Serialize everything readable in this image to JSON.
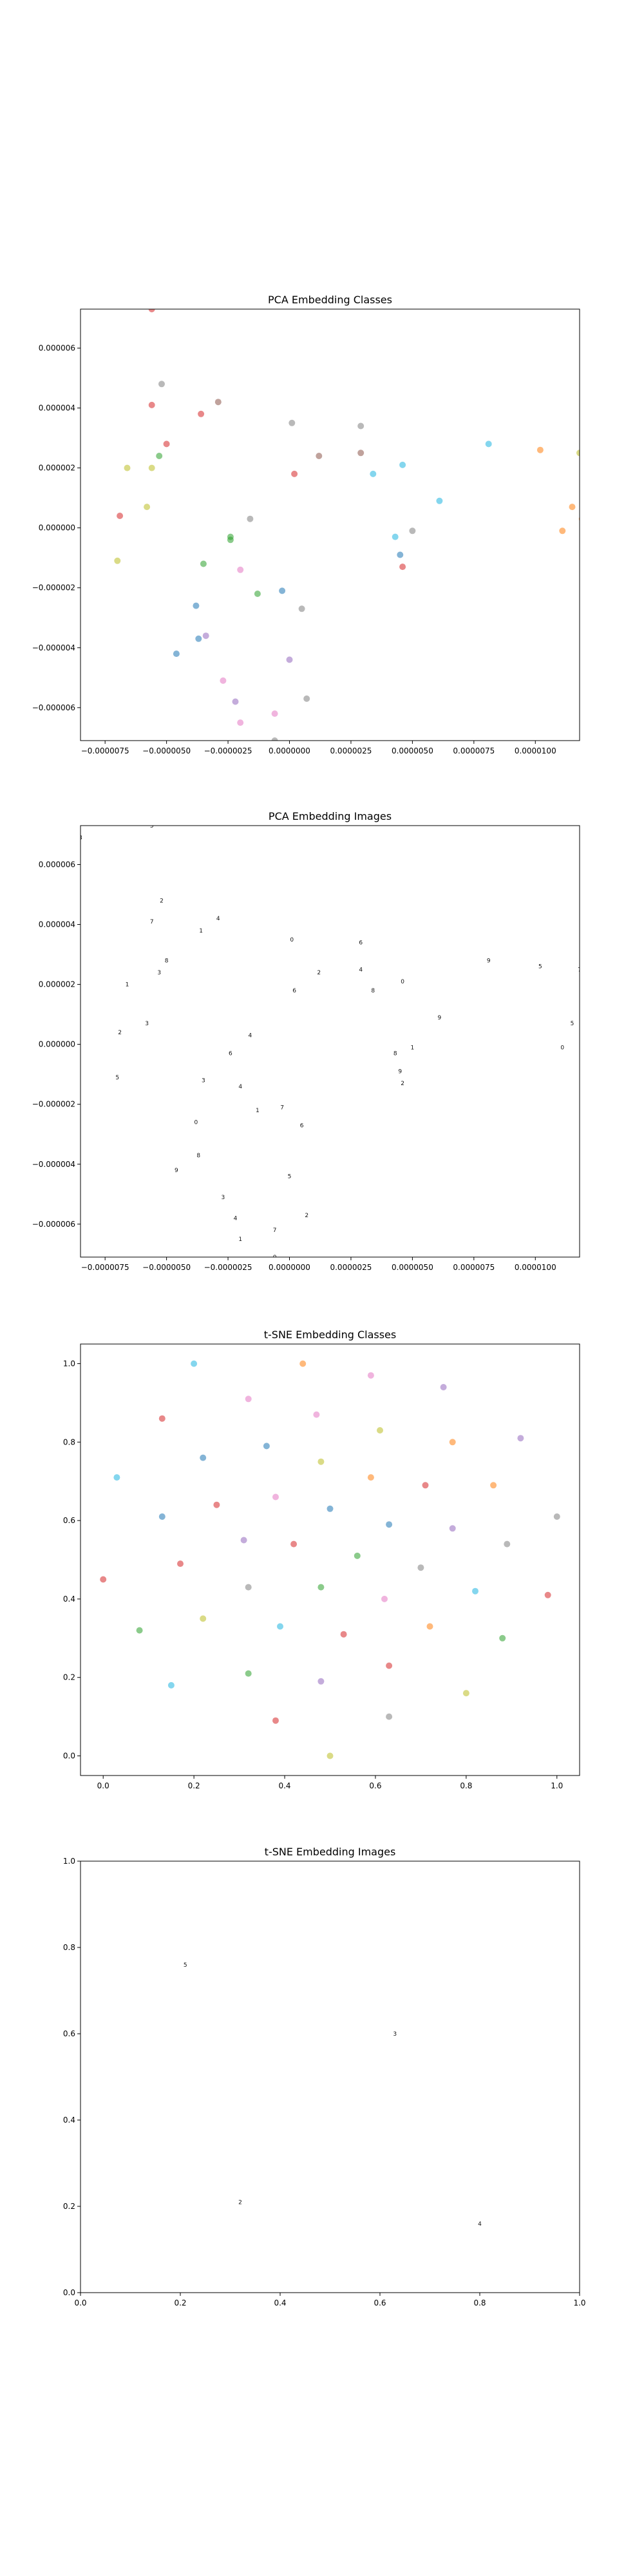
{
  "chart_data": [
    {
      "type": "scatter",
      "title": "PCA Embedding Classes",
      "xlim": [
        -8.5e-06,
        1.18e-05
      ],
      "ylim": [
        -7.1e-06,
        7.3e-06
      ],
      "x_ticks": [
        -7.5e-06,
        -5e-06,
        -2.5e-06,
        0.0,
        2.5e-06,
        5e-06,
        7.5e-06,
        1e-05
      ],
      "x_tick_labels": [
        "−0.0000075",
        "−0.0000050",
        "−0.0000025",
        "0.0000000",
        "0.0000025",
        "0.0000050",
        "0.0000075",
        "0.0000100"
      ],
      "y_ticks": [
        -6e-06,
        -4e-06,
        -2e-06,
        0.0,
        2e-06,
        4e-06,
        6e-06
      ],
      "y_tick_labels": [
        "−0.000006",
        "−0.000004",
        "−0.000002",
        "0.000000",
        "0.000002",
        "0.000004",
        "0.000006"
      ],
      "points": [
        {
          "x": -5.6e-06,
          "y": 7.3e-06,
          "color": "#d62728"
        },
        {
          "x": -5.2e-06,
          "y": 4.8e-06,
          "color": "#7f7f7f"
        },
        {
          "x": -2.9e-06,
          "y": 4.2e-06,
          "color": "#8c564b"
        },
        {
          "x": -5.6e-06,
          "y": 4.1e-06,
          "color": "#d62728"
        },
        {
          "x": -3.6e-06,
          "y": 3.8e-06,
          "color": "#d62728"
        },
        {
          "x": 1e-07,
          "y": 3.5e-06,
          "color": "#7f7f7f"
        },
        {
          "x": 2.9e-06,
          "y": 3.4e-06,
          "color": "#7f7f7f"
        },
        {
          "x": -5e-06,
          "y": 2.8e-06,
          "color": "#d62728"
        },
        {
          "x": 8.1e-06,
          "y": 2.8e-06,
          "color": "#1fb4e0"
        },
        {
          "x": 1.02e-05,
          "y": 2.6e-06,
          "color": "#ff7f0e"
        },
        {
          "x": -5.3e-06,
          "y": 2.4e-06,
          "color": "#2ca02c"
        },
        {
          "x": 1.2e-06,
          "y": 2.4e-06,
          "color": "#8c564b"
        },
        {
          "x": 2.9e-06,
          "y": 2.5e-06,
          "color": "#8c564b"
        },
        {
          "x": 1.18e-05,
          "y": 2.5e-06,
          "color": "#bcbd22"
        },
        {
          "x": -6.6e-06,
          "y": 2e-06,
          "color": "#bcbd22"
        },
        {
          "x": -5.6e-06,
          "y": 2e-06,
          "color": "#bcbd22"
        },
        {
          "x": 4.6e-06,
          "y": 2.1e-06,
          "color": "#1fb4e0"
        },
        {
          "x": 2e-07,
          "y": 1.8e-06,
          "color": "#d62728"
        },
        {
          "x": 3.4e-06,
          "y": 1.8e-06,
          "color": "#1fb4e0"
        },
        {
          "x": 6.1e-06,
          "y": 9e-07,
          "color": "#1fb4e0"
        },
        {
          "x": 1.15e-05,
          "y": 7e-07,
          "color": "#ff7f0e"
        },
        {
          "x": -5.8e-06,
          "y": 7e-07,
          "color": "#bcbd22"
        },
        {
          "x": -6.9e-06,
          "y": 4e-07,
          "color": "#d62728"
        },
        {
          "x": -1.6e-06,
          "y": 3e-07,
          "color": "#7f7f7f"
        },
        {
          "x": 1.19e-05,
          "y": 3e-07,
          "color": "#ff7f0e"
        },
        {
          "x": 5e-06,
          "y": -1e-07,
          "color": "#7f7f7f"
        },
        {
          "x": 1.11e-05,
          "y": -1e-07,
          "color": "#ff7f0e"
        },
        {
          "x": -2.4e-06,
          "y": -3e-07,
          "color": "#2ca02c"
        },
        {
          "x": -2.4e-06,
          "y": -4e-07,
          "color": "#2ca02c"
        },
        {
          "x": 4.3e-06,
          "y": -3e-07,
          "color": "#1fb4e0"
        },
        {
          "x": 4.5e-06,
          "y": -9e-07,
          "color": "#1f77b4"
        },
        {
          "x": -7e-06,
          "y": -1.1e-06,
          "color": "#bcbd22"
        },
        {
          "x": -3.5e-06,
          "y": -1.2e-06,
          "color": "#2ca02c"
        },
        {
          "x": 4.6e-06,
          "y": -1.3e-06,
          "color": "#d62728"
        },
        {
          "x": -2e-06,
          "y": -1.4e-06,
          "color": "#e377c2"
        },
        {
          "x": -3e-07,
          "y": -2.1e-06,
          "color": "#1f77b4"
        },
        {
          "x": -1.3e-06,
          "y": -2.2e-06,
          "color": "#2ca02c"
        },
        {
          "x": -3.8e-06,
          "y": -2.6e-06,
          "color": "#1f77b4"
        },
        {
          "x": 5e-07,
          "y": -2.7e-06,
          "color": "#7f7f7f"
        },
        {
          "x": -3.7e-06,
          "y": -3.7e-06,
          "color": "#1f77b4"
        },
        {
          "x": -3.4e-06,
          "y": -3.6e-06,
          "color": "#9467bd"
        },
        {
          "x": -4.6e-06,
          "y": -4.2e-06,
          "color": "#1f77b4"
        },
        {
          "x": 0.0,
          "y": -4.4e-06,
          "color": "#9467bd"
        },
        {
          "x": -2.7e-06,
          "y": -5.1e-06,
          "color": "#e377c2"
        },
        {
          "x": 7e-07,
          "y": -5.7e-06,
          "color": "#7f7f7f"
        },
        {
          "x": -2.2e-06,
          "y": -5.8e-06,
          "color": "#9467bd"
        },
        {
          "x": -6e-07,
          "y": -6.2e-06,
          "color": "#e377c2"
        },
        {
          "x": -2e-06,
          "y": -6.5e-06,
          "color": "#e377c2"
        },
        {
          "x": -6e-07,
          "y": -7.1e-06,
          "color": "#7f7f7f"
        }
      ]
    },
    {
      "type": "scatter",
      "title": "PCA Embedding Images",
      "xlim": [
        -8.5e-06,
        1.18e-05
      ],
      "ylim": [
        -7.1e-06,
        7.3e-06
      ],
      "x_ticks": [
        -7.5e-06,
        -5e-06,
        -2.5e-06,
        0.0,
        2.5e-06,
        5e-06,
        7.5e-06,
        1e-05
      ],
      "x_tick_labels": [
        "−0.0000075",
        "−0.0000050",
        "−0.0000025",
        "0.0000000",
        "0.0000025",
        "0.0000050",
        "0.0000075",
        "0.0000100"
      ],
      "y_ticks": [
        -6e-06,
        -4e-06,
        -2e-06,
        0.0,
        2e-06,
        4e-06,
        6e-06
      ],
      "y_tick_labels": [
        "−0.000006",
        "−0.000004",
        "−0.000002",
        "0.000000",
        "0.000002",
        "0.000004",
        "0.000006"
      ],
      "points": [
        {
          "x": -5.6e-06,
          "y": 7.3e-06
        },
        {
          "x": -8.5e-06,
          "y": 6.9e-06
        },
        {
          "x": -5.2e-06,
          "y": 4.8e-06
        },
        {
          "x": -2.9e-06,
          "y": 4.2e-06
        },
        {
          "x": -5.6e-06,
          "y": 4.1e-06
        },
        {
          "x": -3.6e-06,
          "y": 3.8e-06
        },
        {
          "x": 1e-07,
          "y": 3.5e-06
        },
        {
          "x": 2.9e-06,
          "y": 3.4e-06
        },
        {
          "x": -5e-06,
          "y": 2.8e-06
        },
        {
          "x": 8.1e-06,
          "y": 2.8e-06
        },
        {
          "x": 1.02e-05,
          "y": 2.6e-06
        },
        {
          "x": -5.3e-06,
          "y": 2.4e-06
        },
        {
          "x": 1.2e-06,
          "y": 2.4e-06
        },
        {
          "x": 2.9e-06,
          "y": 2.5e-06
        },
        {
          "x": 1.18e-05,
          "y": 2.5e-06
        },
        {
          "x": -6.6e-06,
          "y": 2e-06
        },
        {
          "x": 4.6e-06,
          "y": 2.1e-06
        },
        {
          "x": 2e-07,
          "y": 1.8e-06
        },
        {
          "x": 3.4e-06,
          "y": 1.8e-06
        },
        {
          "x": 6.1e-06,
          "y": 9e-07
        },
        {
          "x": 1.15e-05,
          "y": 7e-07
        },
        {
          "x": -5.8e-06,
          "y": 7e-07
        },
        {
          "x": -6.9e-06,
          "y": 4e-07
        },
        {
          "x": -1.6e-06,
          "y": 3e-07
        },
        {
          "x": 1.19e-05,
          "y": 3e-07
        },
        {
          "x": 5e-06,
          "y": -1e-07
        },
        {
          "x": 1.11e-05,
          "y": -1e-07
        },
        {
          "x": -2.4e-06,
          "y": -3e-07
        },
        {
          "x": 4.3e-06,
          "y": -3e-07
        },
        {
          "x": 4.5e-06,
          "y": -9e-07
        },
        {
          "x": -7e-06,
          "y": -1.1e-06
        },
        {
          "x": -3.5e-06,
          "y": -1.2e-06
        },
        {
          "x": 4.6e-06,
          "y": -1.3e-06
        },
        {
          "x": -2e-06,
          "y": -1.4e-06
        },
        {
          "x": -3e-07,
          "y": -2.1e-06
        },
        {
          "x": -1.3e-06,
          "y": -2.2e-06
        },
        {
          "x": -3.8e-06,
          "y": -2.6e-06
        },
        {
          "x": 5e-07,
          "y": -2.7e-06
        },
        {
          "x": -3.7e-06,
          "y": -3.7e-06
        },
        {
          "x": -4.6e-06,
          "y": -4.2e-06
        },
        {
          "x": 0.0,
          "y": -4.4e-06
        },
        {
          "x": -2.7e-06,
          "y": -5.1e-06
        },
        {
          "x": 7e-07,
          "y": -5.7e-06
        },
        {
          "x": -2.2e-06,
          "y": -5.8e-06
        },
        {
          "x": -6e-07,
          "y": -6.2e-06
        },
        {
          "x": -2e-06,
          "y": -6.5e-06
        },
        {
          "x": -6e-07,
          "y": -7.1e-06
        }
      ]
    },
    {
      "type": "scatter",
      "title": "t-SNE Embedding Classes",
      "xlim": [
        -0.05,
        1.05
      ],
      "ylim": [
        -0.05,
        1.05
      ],
      "x_ticks": [
        0.0,
        0.2,
        0.4,
        0.6,
        0.8,
        1.0
      ],
      "x_tick_labels": [
        "0.0",
        "0.2",
        "0.4",
        "0.6",
        "0.8",
        "1.0"
      ],
      "y_ticks": [
        0.0,
        0.2,
        0.4,
        0.6,
        0.8,
        1.0
      ],
      "y_tick_labels": [
        "0.0",
        "0.2",
        "0.4",
        "0.6",
        "0.8",
        "1.0"
      ],
      "points": [
        {
          "x": 0.2,
          "y": 1.0,
          "color": "#1fb4e0"
        },
        {
          "x": 0.44,
          "y": 1.0,
          "color": "#ff7f0e"
        },
        {
          "x": 0.59,
          "y": 0.97,
          "color": "#e377c2"
        },
        {
          "x": 0.75,
          "y": 0.94,
          "color": "#9467bd"
        },
        {
          "x": 0.32,
          "y": 0.91,
          "color": "#e377c2"
        },
        {
          "x": 0.47,
          "y": 0.87,
          "color": "#e377c2"
        },
        {
          "x": 0.13,
          "y": 0.86,
          "color": "#d62728"
        },
        {
          "x": 0.61,
          "y": 0.83,
          "color": "#bcbd22"
        },
        {
          "x": 0.92,
          "y": 0.81,
          "color": "#9467bd"
        },
        {
          "x": 0.77,
          "y": 0.8,
          "color": "#ff7f0e"
        },
        {
          "x": 0.36,
          "y": 0.79,
          "color": "#1f77b4"
        },
        {
          "x": 0.22,
          "y": 0.76,
          "color": "#1f77b4"
        },
        {
          "x": 0.48,
          "y": 0.75,
          "color": "#bcbd22"
        },
        {
          "x": 0.03,
          "y": 0.71,
          "color": "#1fb4e0"
        },
        {
          "x": 0.59,
          "y": 0.71,
          "color": "#ff7f0e"
        },
        {
          "x": 0.71,
          "y": 0.69,
          "color": "#d62728"
        },
        {
          "x": 0.86,
          "y": 0.69,
          "color": "#ff7f0e"
        },
        {
          "x": 0.38,
          "y": 0.66,
          "color": "#e377c2"
        },
        {
          "x": 0.25,
          "y": 0.64,
          "color": "#d62728"
        },
        {
          "x": 0.5,
          "y": 0.63,
          "color": "#1f77b4"
        },
        {
          "x": 0.13,
          "y": 0.61,
          "color": "#1f77b4"
        },
        {
          "x": 1.0,
          "y": 0.61,
          "color": "#7f7f7f"
        },
        {
          "x": 0.63,
          "y": 0.59,
          "color": "#1f77b4"
        },
        {
          "x": 0.77,
          "y": 0.58,
          "color": "#9467bd"
        },
        {
          "x": 0.31,
          "y": 0.55,
          "color": "#9467bd"
        },
        {
          "x": 0.42,
          "y": 0.54,
          "color": "#d62728"
        },
        {
          "x": 0.89,
          "y": 0.54,
          "color": "#7f7f7f"
        },
        {
          "x": 0.56,
          "y": 0.51,
          "color": "#2ca02c"
        },
        {
          "x": 0.17,
          "y": 0.49,
          "color": "#d62728"
        },
        {
          "x": 0.7,
          "y": 0.48,
          "color": "#7f7f7f"
        },
        {
          "x": 0.0,
          "y": 0.45,
          "color": "#d62728"
        },
        {
          "x": 0.32,
          "y": 0.43,
          "color": "#7f7f7f"
        },
        {
          "x": 0.48,
          "y": 0.43,
          "color": "#2ca02c"
        },
        {
          "x": 0.82,
          "y": 0.42,
          "color": "#1fb4e0"
        },
        {
          "x": 0.98,
          "y": 0.41,
          "color": "#d62728"
        },
        {
          "x": 0.62,
          "y": 0.4,
          "color": "#e377c2"
        },
        {
          "x": 0.22,
          "y": 0.35,
          "color": "#bcbd22"
        },
        {
          "x": 0.39,
          "y": 0.33,
          "color": "#1fb4e0"
        },
        {
          "x": 0.72,
          "y": 0.33,
          "color": "#ff7f0e"
        },
        {
          "x": 0.08,
          "y": 0.32,
          "color": "#2ca02c"
        },
        {
          "x": 0.53,
          "y": 0.31,
          "color": "#d62728"
        },
        {
          "x": 0.88,
          "y": 0.3,
          "color": "#2ca02c"
        },
        {
          "x": 0.63,
          "y": 0.23,
          "color": "#d62728"
        },
        {
          "x": 0.32,
          "y": 0.21,
          "color": "#2ca02c"
        },
        {
          "x": 0.48,
          "y": 0.19,
          "color": "#9467bd"
        },
        {
          "x": 0.15,
          "y": 0.18,
          "color": "#1fb4e0"
        },
        {
          "x": 0.8,
          "y": 0.16,
          "color": "#bcbd22"
        },
        {
          "x": 0.63,
          "y": 0.1,
          "color": "#7f7f7f"
        },
        {
          "x": 0.38,
          "y": 0.09,
          "color": "#d62728"
        },
        {
          "x": 0.5,
          "y": 0.0,
          "color": "#bcbd22"
        }
      ]
    },
    {
      "type": "scatter",
      "title": "t-SNE Embedding Images",
      "xlim": [
        0.0,
        1.0
      ],
      "ylim": [
        0.0,
        1.0
      ],
      "x_ticks": [
        0.0,
        0.2,
        0.4,
        0.6,
        0.8,
        1.0
      ],
      "x_tick_labels": [
        "0.0",
        "0.2",
        "0.4",
        "0.6",
        "0.8",
        "1.0"
      ],
      "y_ticks": [
        0.0,
        0.2,
        0.4,
        0.6,
        0.8,
        1.0
      ],
      "y_tick_labels": [
        "0.0",
        "0.2",
        "0.4",
        "0.6",
        "0.8",
        "1.0"
      ],
      "points": [
        {
          "x": 0.21,
          "y": 0.76
        },
        {
          "x": 0.63,
          "y": 0.6
        },
        {
          "x": 0.32,
          "y": 0.21
        },
        {
          "x": 0.8,
          "y": 0.16
        }
      ]
    }
  ]
}
